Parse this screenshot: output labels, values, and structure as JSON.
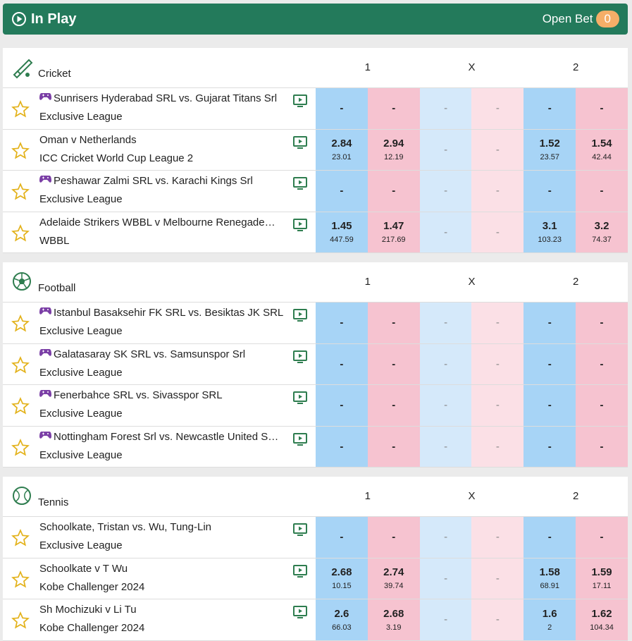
{
  "header": {
    "title": "In Play",
    "open_bet": "Open Bet",
    "open_bet_count": "0"
  },
  "sections": [
    {
      "title": "Cricket",
      "columns": [
        "1",
        "X",
        "2"
      ],
      "events": [
        {
          "name": "Sunrisers Hyderabad SRL vs. Gujarat Titans Srl",
          "competition": "Exclusive League",
          "virtual": true,
          "odds": [
            {
              "price": "-"
            },
            {
              "price": "-"
            },
            {
              "price": "-"
            },
            {
              "price": "-"
            },
            {
              "price": "-"
            },
            {
              "price": "-"
            }
          ]
        },
        {
          "name": "Oman v Netherlands",
          "competition": "ICC Cricket World Cup League 2",
          "virtual": false,
          "odds": [
            {
              "price": "2.84",
              "size": "23.01"
            },
            {
              "price": "2.94",
              "size": "12.19"
            },
            {
              "price": "-"
            },
            {
              "price": "-"
            },
            {
              "price": "1.52",
              "size": "23.57"
            },
            {
              "price": "1.54",
              "size": "42.44"
            }
          ]
        },
        {
          "name": "Peshawar Zalmi SRL vs. Karachi Kings Srl",
          "competition": "Exclusive League",
          "virtual": true,
          "odds": [
            {
              "price": "-"
            },
            {
              "price": "-"
            },
            {
              "price": "-"
            },
            {
              "price": "-"
            },
            {
              "price": "-"
            },
            {
              "price": "-"
            }
          ]
        },
        {
          "name": "Adelaide Strikers WBBL v Melbourne Renegade…",
          "competition": "WBBL",
          "virtual": false,
          "odds": [
            {
              "price": "1.45",
              "size": "447.59"
            },
            {
              "price": "1.47",
              "size": "217.69"
            },
            {
              "price": "-"
            },
            {
              "price": "-"
            },
            {
              "price": "3.1",
              "size": "103.23"
            },
            {
              "price": "3.2",
              "size": "74.37"
            }
          ]
        }
      ]
    },
    {
      "title": "Football",
      "columns": [
        "1",
        "X",
        "2"
      ],
      "events": [
        {
          "name": "Istanbul Basaksehir FK SRL vs. Besiktas JK SRL",
          "competition": "Exclusive League",
          "virtual": true,
          "odds": [
            {
              "price": "-"
            },
            {
              "price": "-"
            },
            {
              "price": "-"
            },
            {
              "price": "-"
            },
            {
              "price": "-"
            },
            {
              "price": "-"
            }
          ]
        },
        {
          "name": "Galatasaray SK SRL vs. Samsunspor Srl",
          "competition": "Exclusive League",
          "virtual": true,
          "odds": [
            {
              "price": "-"
            },
            {
              "price": "-"
            },
            {
              "price": "-"
            },
            {
              "price": "-"
            },
            {
              "price": "-"
            },
            {
              "price": "-"
            }
          ]
        },
        {
          "name": "Fenerbahce SRL vs. Sivasspor SRL",
          "competition": "Exclusive League",
          "virtual": true,
          "odds": [
            {
              "price": "-"
            },
            {
              "price": "-"
            },
            {
              "price": "-"
            },
            {
              "price": "-"
            },
            {
              "price": "-"
            },
            {
              "price": "-"
            }
          ]
        },
        {
          "name": "Nottingham Forest Srl vs. Newcastle United S…",
          "competition": "Exclusive League",
          "virtual": true,
          "odds": [
            {
              "price": "-"
            },
            {
              "price": "-"
            },
            {
              "price": "-"
            },
            {
              "price": "-"
            },
            {
              "price": "-"
            },
            {
              "price": "-"
            }
          ]
        }
      ]
    },
    {
      "title": "Tennis",
      "columns": [
        "1",
        "X",
        "2"
      ],
      "events": [
        {
          "name": "Schoolkate, Tristan vs. Wu, Tung-Lin",
          "competition": "Exclusive League",
          "virtual": false,
          "odds": [
            {
              "price": "-"
            },
            {
              "price": "-"
            },
            {
              "price": "-"
            },
            {
              "price": "-"
            },
            {
              "price": "-"
            },
            {
              "price": "-"
            }
          ]
        },
        {
          "name": "Schoolkate v T Wu",
          "competition": "Kobe Challenger 2024",
          "virtual": false,
          "odds": [
            {
              "price": "2.68",
              "size": "10.15"
            },
            {
              "price": "2.74",
              "size": "39.74"
            },
            {
              "price": "-"
            },
            {
              "price": "-"
            },
            {
              "price": "1.58",
              "size": "68.91"
            },
            {
              "price": "1.59",
              "size": "17.11"
            }
          ]
        },
        {
          "name": "Sh Mochizuki v Li Tu",
          "competition": "Kobe Challenger 2024",
          "virtual": false,
          "odds": [
            {
              "price": "2.6",
              "size": "66.03"
            },
            {
              "price": "2.68",
              "size": "3.19"
            },
            {
              "price": "-"
            },
            {
              "price": "-"
            },
            {
              "price": "1.6",
              "size": "2"
            },
            {
              "price": "1.62",
              "size": "104.34"
            }
          ]
        }
      ]
    }
  ]
}
